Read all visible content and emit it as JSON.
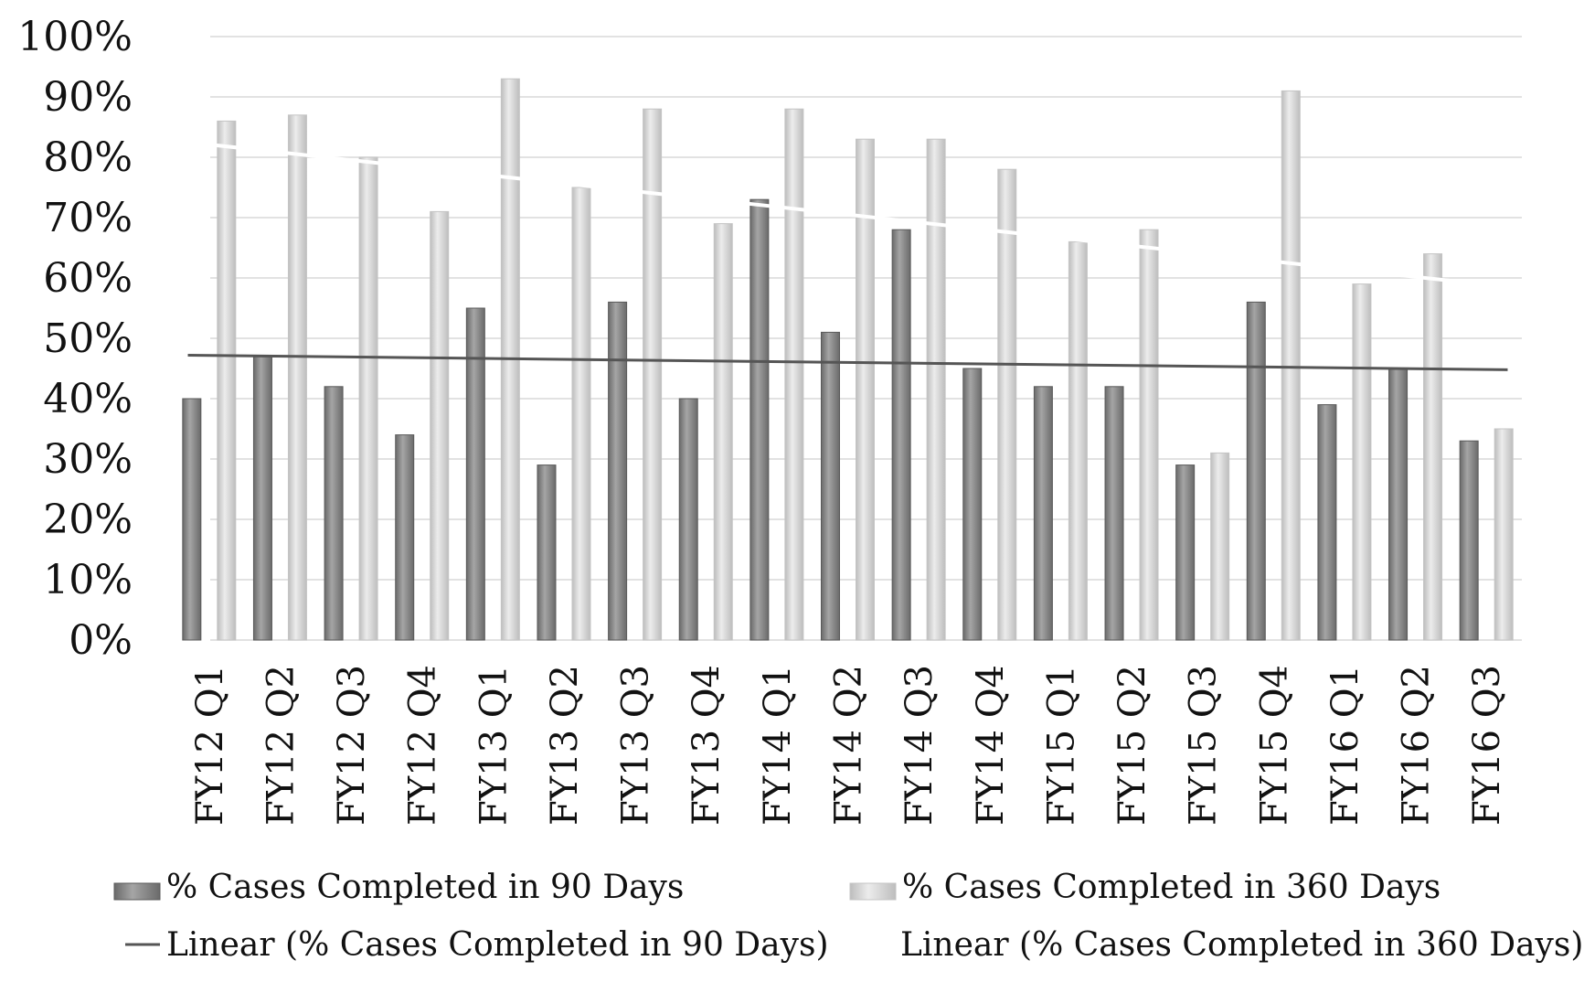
{
  "chart_data": {
    "type": "bar",
    "title": "",
    "xlabel": "",
    "ylabel": "",
    "ylim": [
      0,
      100
    ],
    "y_ticks": [
      "0%",
      "10%",
      "20%",
      "30%",
      "40%",
      "50%",
      "60%",
      "70%",
      "80%",
      "90%",
      "100%"
    ],
    "grid": true,
    "legend_position": "bottom",
    "categories": [
      "FY12 Q1",
      "FY12 Q2",
      "FY12 Q3",
      "FY12 Q4",
      "FY13 Q1",
      "FY13 Q2",
      "FY13 Q3",
      "FY13 Q4",
      "FY14 Q1",
      "FY14 Q2",
      "FY14 Q3",
      "FY14 Q4",
      "FY15 Q1",
      "FY15 Q2",
      "FY15 Q3",
      "FY15 Q4",
      "FY16 Q1",
      "FY16 Q2",
      "FY16 Q3"
    ],
    "series": [
      {
        "name": "% Cases Completed in 90 Days",
        "color": "#8a8a8a",
        "values": [
          40,
          47,
          42,
          34,
          55,
          29,
          56,
          40,
          73,
          51,
          68,
          45,
          42,
          42,
          29,
          56,
          39,
          45,
          33
        ]
      },
      {
        "name": "% Cases Completed in 360 Days",
        "color": "#d6d6d6",
        "values": [
          86,
          87,
          80,
          71,
          93,
          75,
          88,
          69,
          88,
          83,
          83,
          78,
          66,
          68,
          31,
          91,
          59,
          64,
          35
        ]
      }
    ],
    "trendlines": [
      {
        "name": "Linear (% Cases Completed in 90 Days)",
        "color": "#555555",
        "start": 47.2,
        "end": 44.8
      },
      {
        "name": "Linear (% Cases Completed in 360 Days)",
        "color": "#ffffff",
        "start": 82.5,
        "end": 58.5
      }
    ]
  }
}
